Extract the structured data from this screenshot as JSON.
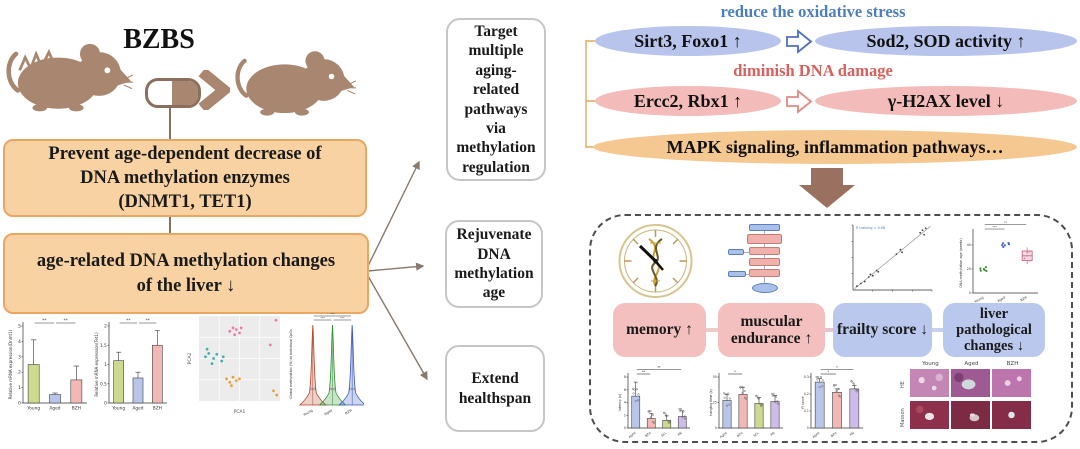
{
  "title": "BZBS",
  "left_flow": {
    "box1": "Prevent age-dependent decrease of\nDNA methylation enzymes\n(DNMT1, TET1)",
    "box2": "age-related DNA methylation changes\nof the liver ↓"
  },
  "middle_boxes": [
    {
      "label": "Target multiple aging-related pathways via methylation regulation"
    },
    {
      "label": "Rejuvenate DNA methylation age"
    },
    {
      "label": "Extend healthspan"
    }
  ],
  "pathways": {
    "oxidative_heading": "reduce the oxidative stress",
    "oxidative_color": "#4d7fc0",
    "dna_heading": "diminish DNA damage",
    "dna_color": "#d9605c",
    "row1_left": "Sirt3, Foxo1 ↑",
    "row1_right": "Sod2, SOD activity ↑",
    "row2_left": "Ercc2, Rbx1 ↑",
    "row2_right": "γ-H2AX level ↓",
    "row3": "MAPK signaling, inflammation pathways…"
  },
  "outcome_labels": [
    "memory ↑",
    "muscular endurance ↑",
    "frailty score ↓",
    "liver pathological changes ↓"
  ],
  "histology": {
    "columns": [
      "Young",
      "Aged",
      "BZH"
    ],
    "rows": [
      "HE",
      "Masson"
    ]
  },
  "accent_colors": {
    "box_fill": "#f8d2a2",
    "box_border": "#eaa763",
    "mouse": "#a9866f",
    "arrow_brown": "#9a7160",
    "bracket_orange": "#e2aa5e"
  },
  "chart_data": [
    {
      "id": "dnmt1",
      "type": "bar",
      "ylabel": "Relative mRNA expression(Dnmt1)",
      "categories": [
        "Young",
        "Aged",
        "BZH"
      ],
      "values": [
        2.5,
        0.55,
        1.5
      ],
      "errors": [
        1.6,
        0.1,
        0.9
      ],
      "colors": [
        "#ccd98e",
        "#b9c6ea",
        "#f2b8b6"
      ],
      "ylim": [
        0,
        5
      ],
      "yticks": [
        0,
        1,
        2,
        3,
        4,
        5
      ],
      "sig": [
        {
          "from": 0,
          "to": 1,
          "label": "**",
          "lv": 0
        },
        {
          "from": 1,
          "to": 2,
          "label": "**",
          "lv": 0
        }
      ]
    },
    {
      "id": "tet1",
      "type": "bar",
      "ylabel": "Relative mRNA expression(Tet1)",
      "categories": [
        "Young",
        "Aged",
        "BZH"
      ],
      "values": [
        1.1,
        0.65,
        1.5
      ],
      "errors": [
        0.22,
        0.15,
        0.38
      ],
      "colors": [
        "#ccd98e",
        "#b9c6ea",
        "#f2b8b6"
      ],
      "ylim": [
        0,
        2
      ],
      "yticks": [
        0,
        0.5,
        1,
        1.5,
        2
      ],
      "sig": [
        {
          "from": 0,
          "to": 1,
          "label": "**",
          "lv": 0
        },
        {
          "from": 1,
          "to": 2,
          "label": "**",
          "lv": 0
        }
      ]
    },
    {
      "id": "pca",
      "type": "pca",
      "xlabel": "PCA1",
      "ylabel": "PCA2",
      "series": [
        {
          "name": "Young",
          "color": "#45b0a8",
          "points": [
            [
              0.08,
              0.52
            ],
            [
              0.12,
              0.56
            ],
            [
              0.1,
              0.61
            ],
            [
              0.18,
              0.5
            ],
            [
              0.22,
              0.55
            ],
            [
              0.28,
              0.47
            ],
            [
              0.3,
              0.52
            ],
            [
              0.16,
              0.44
            ]
          ]
        },
        {
          "name": "Aged",
          "color": "#e87ba8",
          "points": [
            [
              0.38,
              0.82
            ],
            [
              0.42,
              0.86
            ],
            [
              0.46,
              0.84
            ],
            [
              0.5,
              0.8
            ],
            [
              0.44,
              0.78
            ],
            [
              0.52,
              0.86
            ],
            [
              0.95,
              0.95
            ],
            [
              0.88,
              0.66
            ]
          ]
        },
        {
          "name": "BZH",
          "color": "#e8a13c",
          "points": [
            [
              0.34,
              0.26
            ],
            [
              0.38,
              0.22
            ],
            [
              0.42,
              0.28
            ],
            [
              0.46,
              0.24
            ],
            [
              0.4,
              0.18
            ],
            [
              0.5,
              0.26
            ],
            [
              0.92,
              0.12
            ],
            [
              0.96,
              0.07
            ]
          ]
        }
      ]
    },
    {
      "id": "violin",
      "type": "violin",
      "ylabel": "Global methylation (%) at individual CpGs",
      "categories": [
        "Young",
        "Aged",
        "BZH"
      ],
      "colors": [
        "#b5452d",
        "#2f8f2f",
        "#3a57c0"
      ],
      "sig_label": "***"
    },
    {
      "id": "corr",
      "type": "corr",
      "annotation": "R training = 0.98",
      "points": [
        [
          0.05,
          0.06
        ],
        [
          0.1,
          0.1
        ],
        [
          0.15,
          0.13
        ],
        [
          0.2,
          0.2
        ],
        [
          0.22,
          0.24
        ],
        [
          0.25,
          0.22
        ],
        [
          0.3,
          0.3
        ],
        [
          0.32,
          0.28
        ],
        [
          0.55,
          0.55
        ],
        [
          0.6,
          0.62
        ],
        [
          0.62,
          0.58
        ],
        [
          0.85,
          0.88
        ],
        [
          0.88,
          0.92
        ],
        [
          0.9,
          0.85
        ],
        [
          0.92,
          0.95
        ]
      ]
    },
    {
      "id": "dnamage",
      "type": "box",
      "ylabel": "DNA methylation age (weeks)",
      "categories": [
        "Young",
        "Aged",
        "BZH"
      ],
      "colors": [
        "#4a8f3f",
        "#4a66c8",
        "#e87ba8"
      ],
      "centers": [
        20,
        40,
        31
      ],
      "box": {
        "q1": 27,
        "q3": 35,
        "median": 31,
        "lo": 24,
        "hi": 38
      },
      "ylim": [
        0,
        50
      ],
      "yticks": [
        0,
        20,
        40
      ],
      "sig": [
        {
          "from": 0,
          "to": 2,
          "label": "**",
          "lv": 1
        },
        {
          "from": 0,
          "to": 1,
          "label": "***",
          "lv": 0
        }
      ]
    },
    {
      "id": "maze",
      "type": "bar",
      "small": true,
      "dots": true,
      "ylabel": "latency (s)",
      "categories": [
        "Aged",
        "BZH",
        "SCL",
        "RN"
      ],
      "values": [
        5.0,
        1.5,
        1.2,
        1.8
      ],
      "errors": [
        2.2,
        0.8,
        0.7,
        0.9
      ],
      "colors": [
        "#b9c6ea",
        "#f2b8b6",
        "#ccd98e",
        "#cdbce8"
      ],
      "ylim": [
        0,
        8
      ],
      "yticks": [
        0,
        2,
        4,
        6,
        8
      ],
      "sig": [
        {
          "from": 0,
          "to": 3,
          "label": "**",
          "lv": 1
        },
        {
          "from": 0,
          "to": 1,
          "label": "**",
          "lv": 0
        }
      ]
    },
    {
      "id": "endurance",
      "type": "bar",
      "small": true,
      "dots": true,
      "ylabel": "hanging time (s)",
      "categories": [
        "Aged",
        "BZH",
        "SCL",
        "RN"
      ],
      "values": [
        27,
        33,
        24,
        26
      ],
      "errors": [
        6,
        7,
        6,
        6
      ],
      "colors": [
        "#b9c6ea",
        "#f2b8b6",
        "#ccd98e",
        "#cdbce8"
      ],
      "ylim": [
        0,
        50
      ],
      "yticks": [
        0,
        25,
        50
      ],
      "sig": [
        {
          "from": 0,
          "to": 1,
          "label": "*",
          "lv": 0
        }
      ]
    },
    {
      "id": "frailty",
      "type": "bar",
      "small": true,
      "dots": true,
      "ylabel": "FI score",
      "categories": [
        "Aged",
        "BZH",
        "RN"
      ],
      "values": [
        0.27,
        0.21,
        0.23
      ],
      "errors": [
        0.02,
        0.02,
        0.02
      ],
      "colors": [
        "#b9c6ea",
        "#f2b8b6",
        "#cdbce8"
      ],
      "ylim": [
        0,
        0.3
      ],
      "yticks": [
        0,
        0.1,
        0.2,
        0.3
      ],
      "sig": [
        {
          "from": 0,
          "to": 2,
          "label": "*",
          "lv": 1
        },
        {
          "from": 0,
          "to": 1,
          "label": "*",
          "lv": 0
        }
      ]
    }
  ]
}
